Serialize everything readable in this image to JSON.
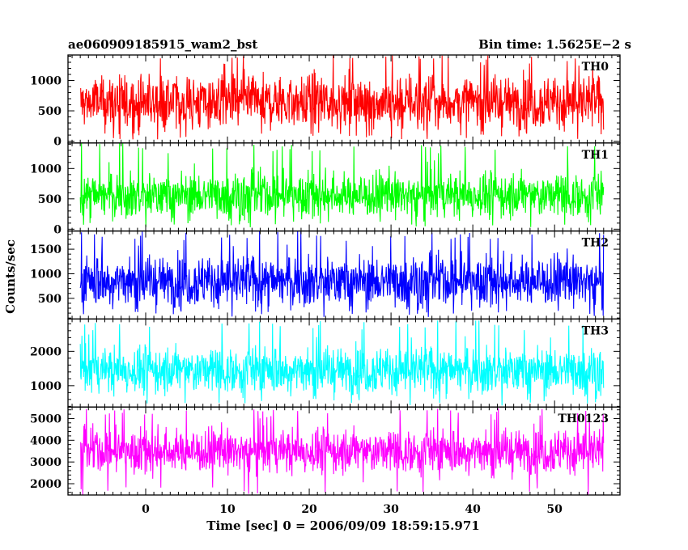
{
  "header": {
    "title": "ae060909185915_wam2_bst",
    "bin_time": "Bin time: 1.5625E−2 s"
  },
  "chart_data": {
    "type": "line",
    "ylabel": "Counts/sec",
    "xlabel": "Time [sec] 0 = 2006/09/09 18:59:15.971",
    "xlim": [
      -9.5,
      58
    ],
    "x_ticks": [
      0,
      10,
      20,
      30,
      40,
      50
    ],
    "x_data_range": [
      -8,
      56
    ],
    "panels": [
      {
        "name": "TH0",
        "color": "#ff0000",
        "ylim": [
          -30,
          1420
        ],
        "y_ticks": [
          0,
          500,
          1000
        ],
        "signal": {
          "mean": 640,
          "low_typical": 180,
          "high_typical": 1150,
          "min": 30,
          "max": 1420
        }
      },
      {
        "name": "TH1",
        "color": "#00ff00",
        "ylim": [
          -30,
          1420
        ],
        "y_ticks": [
          0,
          500,
          1000
        ],
        "signal": {
          "mean": 560,
          "low_typical": 130,
          "high_typical": 1000,
          "min": 30,
          "max": 1420
        }
      },
      {
        "name": "TH2",
        "color": "#0000ff",
        "ylim": [
          80,
          1870
        ],
        "y_ticks": [
          500,
          1000,
          1500
        ],
        "signal": {
          "mean": 850,
          "low_typical": 300,
          "high_typical": 1450,
          "min": 120,
          "max": 1870
        }
      },
      {
        "name": "TH3",
        "color": "#00ffff",
        "ylim": [
          380,
          2940
        ],
        "y_ticks": [
          1000,
          2000
        ],
        "signal": {
          "mean": 1450,
          "low_typical": 700,
          "high_typical": 2250,
          "min": 420,
          "max": 2900
        }
      },
      {
        "name": "TH0123",
        "color": "#ff00ff",
        "ylim": [
          1480,
          5530
        ],
        "y_ticks": [
          2000,
          3000,
          4000,
          5000
        ],
        "signal": {
          "mean": 3500,
          "low_typical": 2500,
          "high_typical": 4700,
          "min": 1480,
          "max": 5500
        }
      }
    ]
  }
}
